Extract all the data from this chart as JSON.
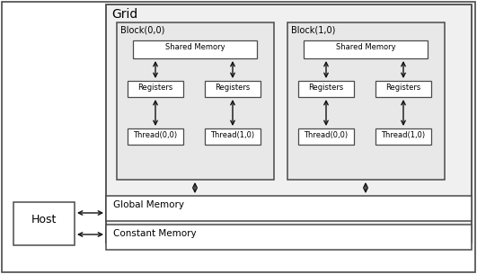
{
  "fig_width": 5.31,
  "fig_height": 3.05,
  "dpi": 100,
  "bg_color": "#ffffff",
  "border_color": "#4a4a4a",
  "grid_bg": "#f0f0f0",
  "block_bg": "#e0e0e0",
  "white": "#ffffff",
  "title": "Grid",
  "host_label": "Host",
  "block00_label": "Block(0,0)",
  "block10_label": "Block(1,0)",
  "shared_memory_label": "Shared Memory",
  "registers_label": "Registers",
  "thread00_label": "Thread(0,0)",
  "thread10_label": "Thread(1,0)",
  "global_memory_label": "Global Memory",
  "constant_memory_label": "Constant Memory",
  "font_size_title": 10,
  "font_size_block_title": 7,
  "font_size_inner": 6,
  "font_size_host": 9,
  "font_size_mem": 7.5
}
